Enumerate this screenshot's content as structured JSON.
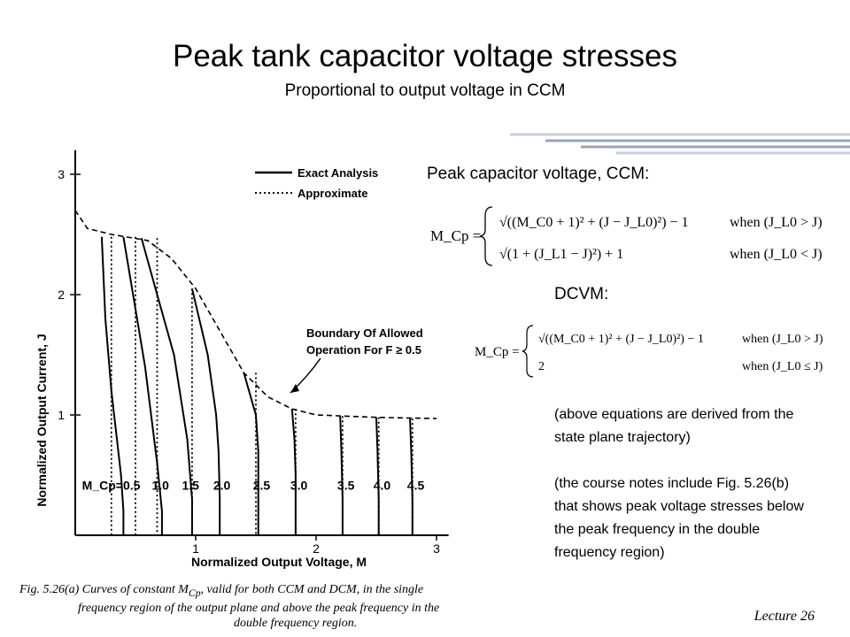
{
  "slide": {
    "title": "Peak tank capacitor voltage stresses",
    "subtitle": "Proportional to output voltage in CCM",
    "footer": "Lecture 26"
  },
  "right_panel": {
    "ccm_heading": "Peak capacitor voltage, CCM:",
    "dcvm_heading": "DCVM:",
    "ccm_equation": {
      "lhs": "M_Cp =",
      "case1": "√((M_C0 + 1)² + (J − J_L0)²) − 1",
      "cond1": "when (J_L0 > J)",
      "case2": "√(1 + (J_L1 − J)²) + 1",
      "cond2": "when (J_L0 < J)"
    },
    "dcvm_equation": {
      "lhs": "M_Cp =",
      "case1": "√((M_C0 + 1)² + (J − J_L0)²) − 1",
      "cond1": "when (J_L0 > J)",
      "case2": "2",
      "cond2": "when (J_L0 ≤ J)"
    },
    "note1": "(above equations are derived from the state plane trajectory)",
    "note2": "(the course notes include Fig. 5.26(b) that shows peak voltage stresses below the peak frequency in the double frequency region)"
  },
  "figure": {
    "legend": [
      "Exact Analysis",
      "Approximate"
    ],
    "annotation": [
      "Boundary Of Allowed",
      "Operation For F ≥ 0.5"
    ],
    "y_axis_label": "Normalized Output Current, J",
    "x_axis_label": "Normalized Output Voltage, M",
    "x_ticks": [
      "1",
      "2",
      "3"
    ],
    "y_ticks": [
      "1",
      "2",
      "3"
    ],
    "curve_labels": [
      "M_Cp=0.5",
      "1.0",
      "1.5",
      "2.0",
      "2.5",
      "3.0",
      "3.5",
      "4.0",
      "4.5"
    ],
    "caption_line1": "Fig. 5.26(a) Curves of constant M",
    "caption_line1b": "Cp",
    "caption_line1c": ", valid for both CCM and DCM, in the single",
    "caption_line2": "frequency region of the output plane and above the peak frequency in the",
    "caption_line3": "double frequency region."
  },
  "chart_data": {
    "type": "line",
    "xlabel": "Normalized Output Voltage, M",
    "ylabel": "Normalized Output Current, J",
    "xlim": [
      0,
      3.1
    ],
    "ylim": [
      0,
      3.2
    ],
    "x_ticks": [
      1,
      2,
      3
    ],
    "y_ticks": [
      1,
      2,
      3
    ],
    "boundary": {
      "name": "Boundary Of Allowed Operation For F ≥ 0.5",
      "x": [
        0,
        0.1,
        0.3,
        0.6,
        0.8,
        1.0,
        1.2,
        1.4,
        1.6,
        1.8,
        2.0,
        2.5,
        3.0
      ],
      "y": [
        2.7,
        2.55,
        2.5,
        2.45,
        2.3,
        2.05,
        1.7,
        1.35,
        1.15,
        1.05,
        1.0,
        0.98,
        0.97
      ]
    },
    "series": [
      {
        "name": "0.5",
        "x": [
          0.22,
          0.25,
          0.3,
          0.38,
          0.4,
          0.4
        ],
        "y": [
          2.48,
          1.8,
          1.2,
          0.5,
          0.2,
          0.0
        ]
      },
      {
        "name": "1.0",
        "x": [
          0.4,
          0.48,
          0.58,
          0.68,
          0.72,
          0.72
        ],
        "y": [
          2.48,
          2.0,
          1.4,
          0.6,
          0.2,
          0.0
        ]
      },
      {
        "name": "1.5",
        "x": [
          0.55,
          0.68,
          0.82,
          0.93,
          0.97,
          0.97
        ],
        "y": [
          2.47,
          2.0,
          1.5,
          0.8,
          0.3,
          0.0
        ]
      },
      {
        "name": "2.0",
        "x": [
          0.97,
          1.1,
          1.17,
          1.19,
          1.2,
          1.2
        ],
        "y": [
          2.05,
          1.5,
          1.0,
          0.7,
          0.3,
          0.0
        ]
      },
      {
        "name": "2.5",
        "x": [
          1.4,
          1.5,
          1.52,
          1.52,
          1.52
        ],
        "y": [
          1.35,
          1.0,
          0.7,
          0.3,
          0.0
        ]
      },
      {
        "name": "3.0",
        "x": [
          1.8,
          1.82,
          1.83,
          1.83,
          1.83
        ],
        "y": [
          1.05,
          0.8,
          0.5,
          0.2,
          0.0
        ]
      },
      {
        "name": "3.5",
        "x": [
          2.2,
          2.21,
          2.22,
          2.22
        ],
        "y": [
          0.99,
          0.7,
          0.3,
          0.0
        ]
      },
      {
        "name": "4.0",
        "x": [
          2.5,
          2.51,
          2.52,
          2.52
        ],
        "y": [
          0.98,
          0.7,
          0.3,
          0.0
        ]
      },
      {
        "name": "4.5",
        "x": [
          2.78,
          2.79,
          2.8,
          2.8
        ],
        "y": [
          0.97,
          0.7,
          0.3,
          0.0
        ]
      }
    ],
    "approx_series_x": [
      0.3,
      0.5,
      0.68,
      0.97,
      1.5,
      1.83,
      2.22,
      2.52,
      2.8
    ]
  },
  "colors": {
    "ink": "#000000",
    "deco1": "#9aa3b5",
    "deco2": "#c9ced9"
  }
}
